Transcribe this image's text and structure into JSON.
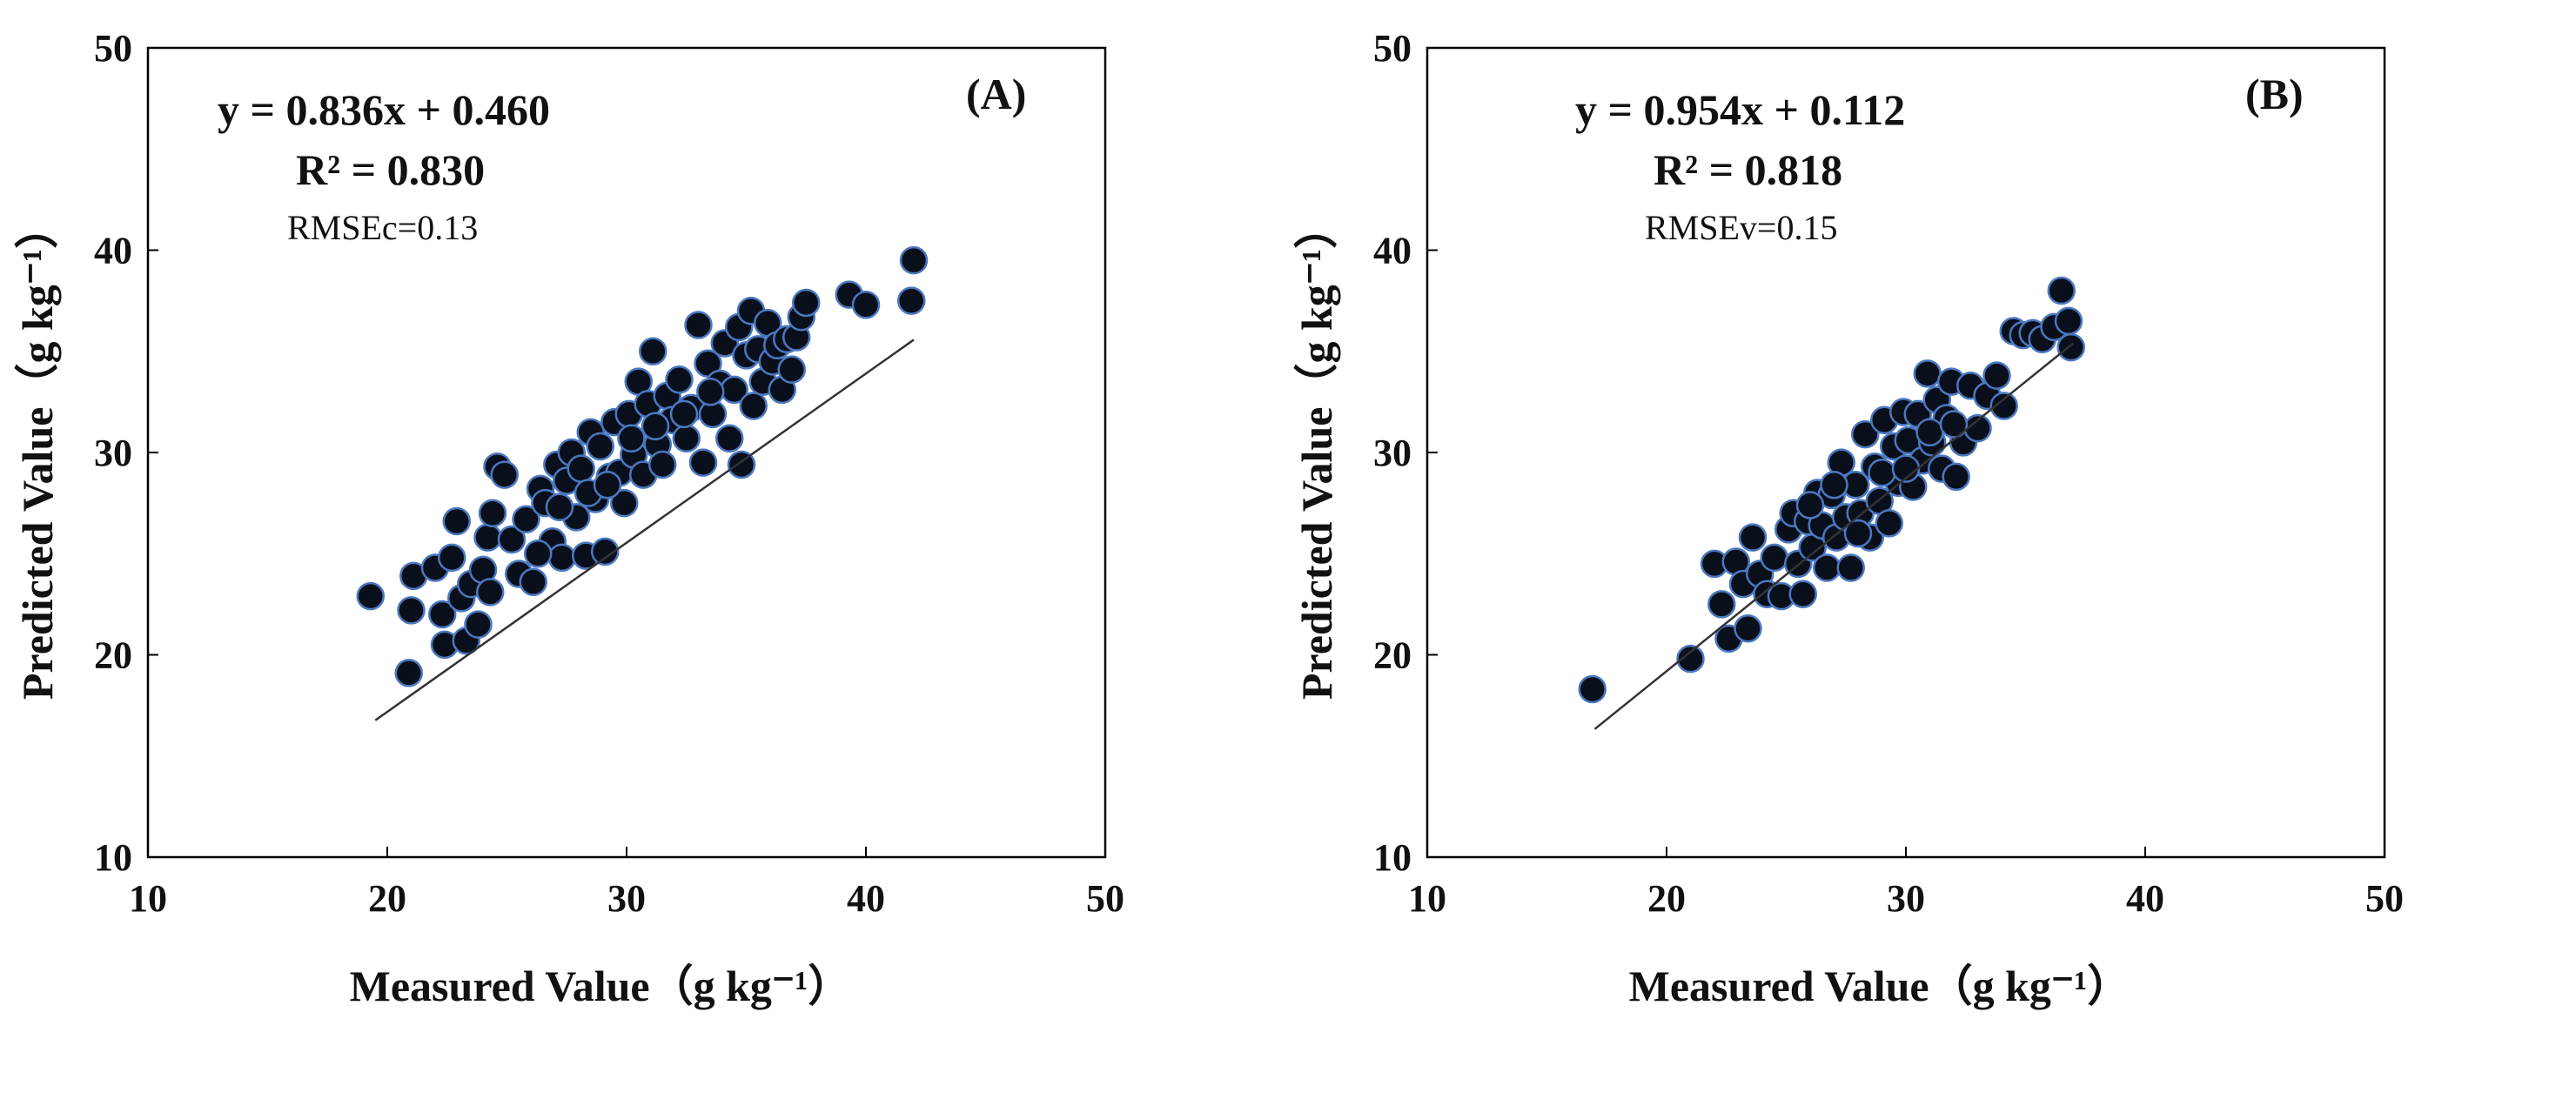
{
  "chart_data": [
    {
      "type": "scatter",
      "panel_label": "(A)",
      "xlabel": "Measured Value（g kg⁻¹）",
      "ylabel": "Predicted Value（g kg⁻¹）",
      "xlim": [
        10,
        50
      ],
      "ylim": [
        10,
        50
      ],
      "xticks": [
        "10",
        "20",
        "30",
        "40",
        "50"
      ],
      "yticks": [
        "10",
        "20",
        "30",
        "40",
        "50"
      ],
      "equation": "y = 0.836x + 0.460",
      "r2": "R² = 0.830",
      "rmse": "RMSEc=0.13",
      "fit": {
        "slope": 0.836,
        "intercept": 0.46,
        "x_range": [
          19.5,
          42
        ]
      },
      "point_style": {
        "fill": "#0a0f1c",
        "stroke": "#4a78c0"
      },
      "points": [
        [
          19.3,
          22.9
        ],
        [
          20.9,
          19.1
        ],
        [
          21.0,
          22.2
        ],
        [
          21.1,
          23.9
        ],
        [
          22.0,
          24.3
        ],
        [
          22.3,
          22.0
        ],
        [
          22.4,
          20.5
        ],
        [
          22.7,
          24.8
        ],
        [
          22.9,
          26.6
        ],
        [
          23.1,
          22.8
        ],
        [
          23.3,
          20.7
        ],
        [
          23.5,
          23.5
        ],
        [
          23.8,
          21.5
        ],
        [
          24.0,
          24.2
        ],
        [
          24.2,
          25.8
        ],
        [
          24.3,
          23.1
        ],
        [
          24.4,
          27.0
        ],
        [
          24.6,
          29.3
        ],
        [
          24.9,
          28.9
        ],
        [
          25.2,
          25.7
        ],
        [
          25.5,
          24.0
        ],
        [
          25.8,
          26.7
        ],
        [
          26.1,
          23.6
        ],
        [
          26.4,
          28.2
        ],
        [
          26.6,
          27.5
        ],
        [
          26.9,
          25.6
        ],
        [
          27.1,
          29.4
        ],
        [
          27.3,
          24.8
        ],
        [
          27.5,
          28.6
        ],
        [
          27.7,
          30.0
        ],
        [
          27.9,
          26.8
        ],
        [
          28.1,
          29.2
        ],
        [
          28.3,
          24.9
        ],
        [
          28.5,
          31.0
        ],
        [
          28.7,
          27.7
        ],
        [
          28.9,
          30.3
        ],
        [
          29.1,
          25.1
        ],
        [
          29.3,
          28.8
        ],
        [
          29.5,
          31.5
        ],
        [
          29.7,
          29.0
        ],
        [
          29.9,
          27.5
        ],
        [
          30.1,
          31.9
        ],
        [
          30.3,
          29.9
        ],
        [
          30.5,
          33.5
        ],
        [
          30.7,
          28.9
        ],
        [
          30.9,
          32.4
        ],
        [
          31.1,
          35.0
        ],
        [
          31.3,
          30.4
        ],
        [
          31.5,
          29.4
        ],
        [
          31.7,
          32.8
        ],
        [
          31.9,
          31.6
        ],
        [
          32.2,
          33.6
        ],
        [
          32.5,
          30.7
        ],
        [
          32.7,
          32.2
        ],
        [
          33.0,
          36.3
        ],
        [
          33.2,
          29.5
        ],
        [
          33.4,
          34.4
        ],
        [
          33.6,
          31.9
        ],
        [
          33.9,
          33.4
        ],
        [
          34.1,
          35.4
        ],
        [
          34.3,
          30.7
        ],
        [
          34.5,
          33.1
        ],
        [
          34.7,
          36.2
        ],
        [
          34.8,
          29.4
        ],
        [
          35.0,
          34.8
        ],
        [
          35.2,
          37.0
        ],
        [
          35.3,
          32.3
        ],
        [
          35.5,
          35.1
        ],
        [
          35.7,
          33.5
        ],
        [
          35.9,
          36.4
        ],
        [
          36.1,
          34.5
        ],
        [
          36.3,
          35.3
        ],
        [
          36.5,
          33.1
        ],
        [
          36.7,
          35.6
        ],
        [
          36.9,
          34.1
        ],
        [
          37.1,
          35.7
        ],
        [
          37.3,
          36.7
        ],
        [
          37.5,
          37.4
        ],
        [
          39.3,
          37.8
        ],
        [
          40.0,
          37.3
        ],
        [
          41.9,
          37.5
        ],
        [
          42.0,
          39.5
        ],
        [
          26.3,
          25.0
        ],
        [
          27.2,
          27.3
        ],
        [
          28.4,
          28.0
        ],
        [
          29.2,
          28.4
        ],
        [
          30.2,
          30.7
        ],
        [
          31.2,
          31.3
        ],
        [
          32.4,
          31.9
        ],
        [
          33.5,
          33.0
        ]
      ]
    },
    {
      "type": "scatter",
      "panel_label": "(B)",
      "xlabel": "Measured Value（g kg⁻¹）",
      "ylabel": "Predicted Value（g kg⁻¹）",
      "xlim": [
        10,
        50
      ],
      "ylim": [
        10,
        50
      ],
      "xticks": [
        "10",
        "20",
        "30",
        "40",
        "50"
      ],
      "yticks": [
        "10",
        "20",
        "30",
        "40",
        "50"
      ],
      "equation": "y = 0.954x + 0.112",
      "r2": "R² = 0.818",
      "rmse": "RMSEv=0.15",
      "fit": {
        "slope": 0.954,
        "intercept": 0.112,
        "x_range": [
          17,
          37
        ]
      },
      "point_style": {
        "fill": "#0a0f1c",
        "stroke": "#4a78c0"
      },
      "points": [
        [
          16.9,
          18.3
        ],
        [
          21.0,
          19.8
        ],
        [
          22.0,
          24.5
        ],
        [
          22.3,
          22.5
        ],
        [
          22.6,
          20.8
        ],
        [
          22.9,
          24.6
        ],
        [
          23.2,
          23.5
        ],
        [
          23.4,
          21.3
        ],
        [
          23.6,
          25.8
        ],
        [
          23.9,
          24.0
        ],
        [
          24.2,
          23.0
        ],
        [
          24.5,
          24.8
        ],
        [
          24.8,
          22.9
        ],
        [
          25.1,
          26.2
        ],
        [
          25.3,
          27.0
        ],
        [
          25.5,
          24.5
        ],
        [
          25.7,
          23.0
        ],
        [
          25.9,
          26.6
        ],
        [
          26.1,
          25.3
        ],
        [
          26.3,
          28.0
        ],
        [
          26.5,
          26.4
        ],
        [
          26.7,
          24.3
        ],
        [
          26.9,
          27.9
        ],
        [
          27.1,
          25.8
        ],
        [
          27.3,
          29.5
        ],
        [
          27.5,
          26.8
        ],
        [
          27.7,
          24.3
        ],
        [
          27.9,
          28.4
        ],
        [
          28.1,
          27.0
        ],
        [
          28.3,
          30.9
        ],
        [
          28.5,
          25.8
        ],
        [
          28.7,
          29.3
        ],
        [
          28.9,
          27.6
        ],
        [
          29.1,
          31.6
        ],
        [
          29.3,
          26.5
        ],
        [
          29.5,
          30.3
        ],
        [
          29.7,
          28.5
        ],
        [
          29.9,
          32.0
        ],
        [
          30.1,
          30.6
        ],
        [
          30.3,
          28.3
        ],
        [
          30.5,
          31.9
        ],
        [
          30.7,
          29.6
        ],
        [
          30.9,
          33.9
        ],
        [
          31.1,
          30.5
        ],
        [
          31.3,
          32.6
        ],
        [
          31.5,
          29.2
        ],
        [
          31.7,
          31.7
        ],
        [
          31.9,
          33.5
        ],
        [
          32.1,
          28.8
        ],
        [
          32.4,
          30.5
        ],
        [
          32.7,
          33.3
        ],
        [
          33.0,
          31.2
        ],
        [
          33.4,
          32.8
        ],
        [
          33.8,
          33.8
        ],
        [
          34.1,
          32.3
        ],
        [
          34.5,
          36.0
        ],
        [
          34.9,
          35.8
        ],
        [
          35.3,
          35.9
        ],
        [
          35.7,
          35.6
        ],
        [
          36.2,
          36.2
        ],
        [
          36.5,
          38.0
        ],
        [
          36.8,
          36.5
        ],
        [
          36.9,
          35.2
        ],
        [
          26.0,
          27.4
        ],
        [
          27.0,
          28.4
        ],
        [
          28.0,
          26.0
        ],
        [
          29.0,
          29.0
        ],
        [
          30.0,
          29.2
        ],
        [
          31.0,
          31.0
        ],
        [
          32.0,
          31.4
        ]
      ]
    }
  ]
}
